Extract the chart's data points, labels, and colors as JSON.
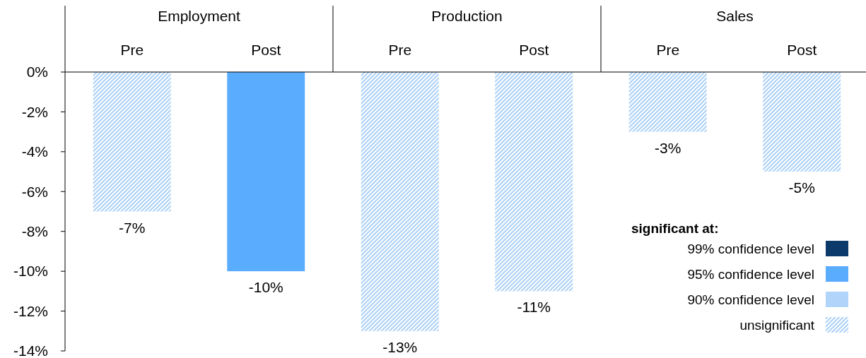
{
  "chart_data": {
    "type": "bar",
    "categories": [
      "Pre",
      "Post",
      "Pre",
      "Post",
      "Pre",
      "Post"
    ],
    "annotations": [
      "Employment",
      "Production",
      "Sales"
    ],
    "legend_title": "significant at:",
    "legend": "bottom right",
    "ylim": [
      -14,
      0
    ],
    "yticks": [
      {
        "value": -14,
        "label": "-14%"
      },
      {
        "value": -12,
        "label": "-12%"
      },
      {
        "value": -10,
        "label": "-10%"
      },
      {
        "value": -8,
        "label": "-8%"
      },
      {
        "value": -6,
        "label": "-6%"
      },
      {
        "value": -4,
        "label": "-4%"
      },
      {
        "value": -2,
        "label": "-2%"
      },
      {
        "value": 0,
        "label": "0%"
      }
    ],
    "series": [
      {
        "name": "99% confidence level",
        "color": "#0b3a6b",
        "values": [
          null,
          null,
          null,
          null,
          null,
          null
        ]
      },
      {
        "name": "95% confidence level",
        "color": "#5aacff",
        "values": [
          null,
          -10,
          null,
          null,
          null,
          null
        ]
      },
      {
        "name": "90% confidence level",
        "color": "#b1d5fa",
        "values": [
          null,
          null,
          null,
          null,
          null,
          null
        ]
      },
      {
        "name": "unsignificant",
        "color": "#a9cff7",
        "values": [
          -7,
          null,
          -13,
          -11,
          -3,
          -5
        ]
      }
    ],
    "value_labels": [
      "-7%",
      "-10%",
      "-13%",
      "-11%",
      "-3%",
      "-5%"
    ]
  }
}
